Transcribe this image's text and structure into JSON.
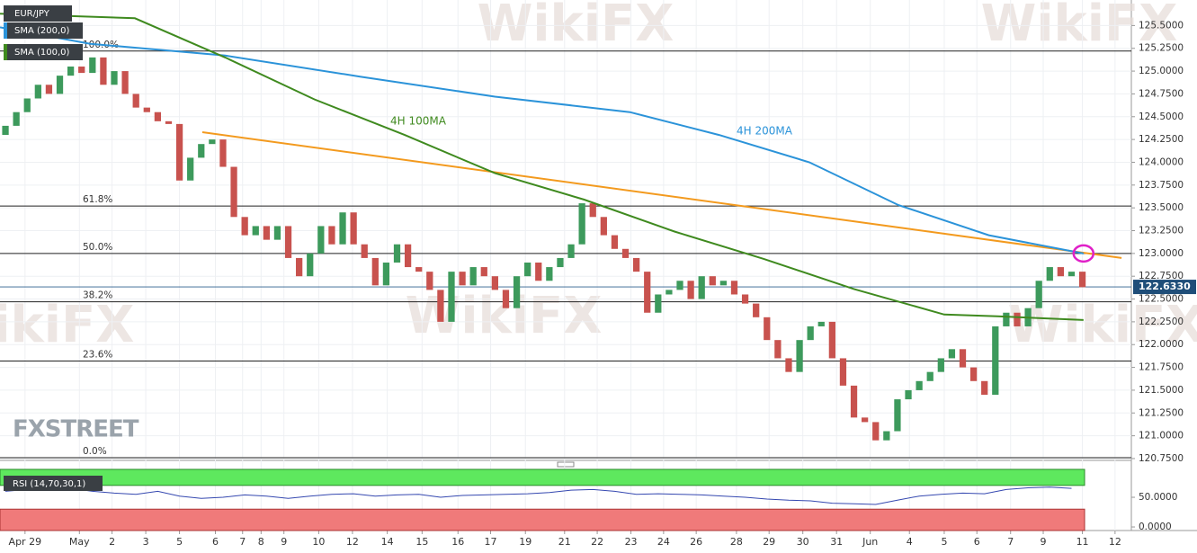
{
  "chart_data": {
    "type": "candlestick",
    "symbol": "EUR/JPY",
    "legend": [
      "SMA (200,0)",
      "SMA (100,0)"
    ],
    "logo": "FXSTREET",
    "watermark": "WikiFX",
    "xlim": [
      -0.5,
      103.5
    ],
    "ylim": [
      120.73,
      125.78
    ],
    "xticks": [
      {
        "value": 1.8,
        "label": "Apr 29"
      },
      {
        "value": 6.8,
        "label": "May"
      },
      {
        "value": 9.8,
        "label": "2"
      },
      {
        "value": 12.9,
        "label": "3"
      },
      {
        "value": 16,
        "label": "5"
      },
      {
        "value": 19.3,
        "label": "6"
      },
      {
        "value": 21.8,
        "label": "7"
      },
      {
        "value": 23.5,
        "label": "8"
      },
      {
        "value": 25.6,
        "label": "9"
      },
      {
        "value": 28.8,
        "label": "10"
      },
      {
        "value": 31.9,
        "label": "12"
      },
      {
        "value": 35.1,
        "label": "14"
      },
      {
        "value": 38.3,
        "label": "15"
      },
      {
        "value": 41.6,
        "label": "16"
      },
      {
        "value": 44.6,
        "label": "17"
      },
      {
        "value": 47.8,
        "label": "19"
      },
      {
        "value": 51.4,
        "label": "21"
      },
      {
        "value": 54.4,
        "label": "22"
      },
      {
        "value": 57.5,
        "label": "23"
      },
      {
        "value": 60.5,
        "label": "24"
      },
      {
        "value": 63.5,
        "label": "26"
      },
      {
        "value": 67.2,
        "label": "28"
      },
      {
        "value": 70.2,
        "label": "29"
      },
      {
        "value": 73.3,
        "label": "30"
      },
      {
        "value": 76.4,
        "label": "31"
      },
      {
        "value": 79.5,
        "label": "Jun"
      },
      {
        "value": 83.1,
        "label": "4"
      },
      {
        "value": 86.3,
        "label": "5"
      },
      {
        "value": 89.3,
        "label": "6"
      },
      {
        "value": 92.4,
        "label": "7"
      },
      {
        "value": 95.4,
        "label": "9"
      },
      {
        "value": 99,
        "label": "11"
      },
      {
        "value": 102,
        "label": "12"
      }
    ],
    "yticks": [
      {
        "value": 120.75,
        "label": "120.7500"
      },
      {
        "value": 121,
        "label": "121.0000"
      },
      {
        "value": 121.25,
        "label": "121.2500"
      },
      {
        "value": 121.5,
        "label": "121.5000"
      },
      {
        "value": 121.75,
        "label": "121.7500"
      },
      {
        "value": 122,
        "label": "122.0000"
      },
      {
        "value": 122.25,
        "label": "122.2500"
      },
      {
        "value": 122.5,
        "label": "122.5000"
      },
      {
        "value": 122.75,
        "label": "122.7500"
      },
      {
        "value": 123,
        "label": "123.0000"
      },
      {
        "value": 123.25,
        "label": "123.2500"
      },
      {
        "value": 123.5,
        "label": "123.5000"
      },
      {
        "value": 123.75,
        "label": "123.7500"
      },
      {
        "value": 124,
        "label": "124.0000"
      },
      {
        "value": 124.25,
        "label": "124.2500"
      },
      {
        "value": 124.5,
        "label": "124.5000"
      },
      {
        "value": 124.75,
        "label": "124.7500"
      },
      {
        "value": 125,
        "label": "125.0000"
      },
      {
        "value": 125.25,
        "label": "125.2500"
      },
      {
        "value": 125.5,
        "label": "125.5000"
      }
    ],
    "grid": true,
    "up_color": "#3d9a5c",
    "down_color": "#c8524e",
    "open": [
      124.3,
      124.4,
      124.55,
      124.7,
      124.85,
      124.75,
      124.95,
      125.05,
      124.98,
      125.15,
      124.85,
      125.0,
      124.75,
      124.6,
      124.55,
      124.45,
      124.42,
      123.8,
      124.05,
      124.2,
      124.25,
      123.95,
      123.4,
      123.2,
      123.3,
      123.15,
      123.3,
      122.95,
      122.75,
      123.0,
      123.3,
      123.1,
      123.45,
      123.1,
      122.95,
      122.65,
      122.9,
      123.1,
      122.85,
      122.8,
      122.6,
      122.25,
      122.8,
      122.65,
      122.85,
      122.75,
      122.6,
      122.4,
      122.75,
      122.9,
      122.7,
      122.85,
      122.95,
      123.1,
      123.55,
      123.4,
      123.2,
      123.05,
      122.95,
      122.8,
      122.35,
      122.55,
      122.6,
      122.7,
      122.5,
      122.75,
      122.65,
      122.7,
      122.55,
      122.45,
      122.3,
      122.05,
      121.85,
      121.7,
      122.05,
      122.2,
      122.25,
      121.85,
      121.55,
      121.2,
      121.15,
      120.95,
      121.05,
      121.4,
      121.5,
      121.6,
      121.7,
      121.85,
      121.95,
      121.75,
      121.6,
      121.45,
      122.2,
      122.35,
      122.2,
      122.4,
      122.7,
      122.85,
      122.75,
      122.8
    ],
    "close": [
      124.4,
      124.55,
      124.7,
      124.85,
      124.75,
      124.95,
      125.05,
      124.98,
      125.15,
      124.85,
      125.0,
      124.75,
      124.6,
      124.55,
      124.45,
      124.42,
      123.8,
      124.05,
      124.2,
      124.25,
      123.95,
      123.4,
      123.2,
      123.3,
      123.15,
      123.3,
      122.95,
      122.75,
      123.0,
      123.3,
      123.1,
      123.45,
      123.1,
      122.95,
      122.65,
      122.9,
      123.1,
      122.85,
      122.8,
      122.6,
      122.25,
      122.8,
      122.65,
      122.85,
      122.75,
      122.6,
      122.4,
      122.75,
      122.9,
      122.7,
      122.85,
      122.95,
      123.1,
      123.55,
      123.4,
      123.2,
      123.05,
      122.95,
      122.8,
      122.35,
      122.55,
      122.6,
      122.7,
      122.5,
      122.75,
      122.65,
      122.7,
      122.55,
      122.45,
      122.3,
      122.05,
      121.85,
      121.7,
      122.05,
      122.2,
      122.25,
      121.85,
      121.55,
      121.2,
      121.15,
      120.95,
      121.05,
      121.4,
      121.5,
      121.6,
      121.7,
      121.85,
      121.95,
      121.75,
      121.6,
      121.45,
      122.2,
      122.35,
      122.2,
      122.4,
      122.7,
      122.85,
      122.75,
      122.8,
      122.63
    ],
    "series": [
      {
        "name": "4H 200MA",
        "color": "#2b93d9",
        "x": [
          -0.5,
          7.8,
          20.2,
          32.6,
          45,
          57.4,
          65.6,
          73.9,
          82.1,
          90.4,
          99.1
        ],
        "values": [
          125.48,
          125.3,
          125.17,
          124.94,
          124.72,
          124.55,
          124.3,
          124.0,
          123.53,
          123.2,
          123.0
        ]
      },
      {
        "name": "4H 100MA",
        "color": "#3f8a1f",
        "x": [
          -0.5,
          11.9,
          20.2,
          28.4,
          36.7,
          45,
          53.2,
          61.5,
          69.7,
          78,
          86.3,
          91.2,
          99.1
        ],
        "values": [
          125.63,
          125.58,
          125.15,
          124.69,
          124.3,
          123.88,
          123.59,
          123.24,
          122.94,
          122.61,
          122.33,
          122.31,
          122.27
        ]
      }
    ],
    "trendline": {
      "color": "#f39a1e",
      "x": [
        18.1,
        102.6
      ],
      "values": [
        124.33,
        122.95
      ]
    },
    "highlight": {
      "color": "#e020c8",
      "x": 99.1,
      "value": 123.0
    },
    "fib_levels": [
      {
        "label": "100.0%",
        "value": 125.22
      },
      {
        "label": "61.8%",
        "value": 123.52
      },
      {
        "label": "50.0%",
        "value": 123.0
      },
      {
        "label": "38.2%",
        "value": 122.47
      },
      {
        "label": "23.6%",
        "value": 121.82
      },
      {
        "label": "0.0%",
        "value": 120.76
      }
    ],
    "last_price": 122.633,
    "last_price_label": "122.6330",
    "rsi": {
      "name": "RSI (14,70,30,1)",
      "color": "#3548b0",
      "ylim": [
        -6,
        97
      ],
      "overbought": 70,
      "oversold": 30,
      "yticks": [
        {
          "value": 50,
          "label": "50.0000"
        },
        {
          "value": 0,
          "label": "0.0000"
        }
      ],
      "x": [
        0,
        2,
        4,
        6,
        8,
        10,
        12,
        14,
        16,
        18,
        20,
        22,
        24,
        26,
        28,
        30,
        32,
        34,
        36,
        38,
        40,
        42,
        44,
        46,
        48,
        50,
        52,
        54,
        56,
        58,
        60,
        62,
        64,
        66,
        68,
        70,
        72,
        74,
        76,
        78,
        80,
        82,
        84,
        86,
        88,
        90,
        92,
        94,
        96,
        98
      ],
      "values": [
        60,
        63,
        66,
        65,
        60,
        57,
        55,
        60,
        52,
        48,
        50,
        54,
        52,
        48,
        52,
        55,
        56,
        52,
        54,
        55,
        50,
        53,
        54,
        55,
        56,
        58,
        62,
        63,
        60,
        55,
        56,
        55,
        54,
        52,
        50,
        47,
        45,
        44,
        40,
        39,
        38,
        45,
        52,
        55,
        57,
        56,
        63,
        66,
        67,
        65
      ]
    }
  }
}
